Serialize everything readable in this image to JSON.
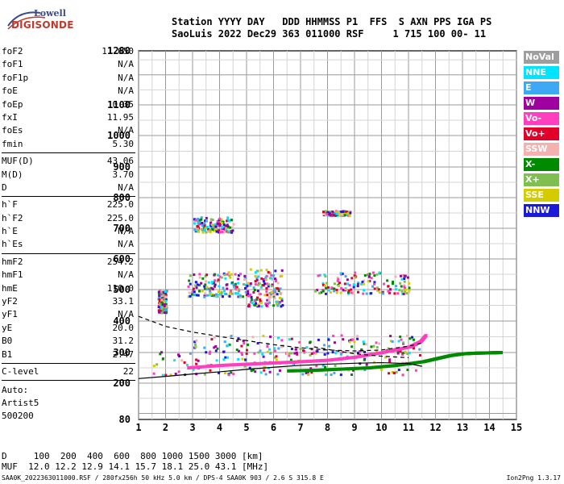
{
  "logo": {
    "lowell": "Lowell",
    "digisonde": "DIGISONDE"
  },
  "header": {
    "line1": "Station YYYY DAY   DDD HHMMSS P1  FFS  S AXN PPS IGA PS",
    "line2": "SaoLuis 2022 Dec29 363 011000 RSF     1 715 100 00- 11"
  },
  "params": [
    {
      "name": "foF2",
      "value": "11.650"
    },
    {
      "name": "foF1",
      "value": "N/A"
    },
    {
      "name": "foF1p",
      "value": "N/A"
    },
    {
      "name": "foE",
      "value": "N/A"
    },
    {
      "name": "foEp",
      "value": "0.35"
    },
    {
      "name": "fxI",
      "value": "11.95"
    },
    {
      "name": "foEs",
      "value": "N/A"
    },
    {
      "name": "fmin",
      "value": "5.30"
    },
    {
      "sep": true
    },
    {
      "name": "MUF(D)",
      "value": "43.06"
    },
    {
      "name": "M(D)",
      "value": "3.70"
    },
    {
      "name": "D",
      "value": "N/A"
    },
    {
      "sep": true
    },
    {
      "name": "h`F",
      "value": "225.0"
    },
    {
      "name": "h`F2",
      "value": "225.0"
    },
    {
      "name": "h`E",
      "value": "N/A"
    },
    {
      "name": "h`Es",
      "value": "N/A"
    },
    {
      "sep": true
    },
    {
      "name": "hmF2",
      "value": "254.2"
    },
    {
      "name": "hmF1",
      "value": "N/A"
    },
    {
      "name": "hmE",
      "value": "110.0"
    },
    {
      "name": "yF2",
      "value": "33.1"
    },
    {
      "name": "yF1",
      "value": "N/A"
    },
    {
      "name": "yE",
      "value": "20.0"
    },
    {
      "name": "B0",
      "value": "31.2"
    },
    {
      "name": "B1",
      "value": "2.47"
    },
    {
      "sep": true
    },
    {
      "name": "C-level",
      "value": "22"
    },
    {
      "sep": true
    }
  ],
  "auto": {
    "line1": "Auto:",
    "line2": "Artist5",
    "line3": "500200"
  },
  "legend": [
    {
      "label": "NoVal",
      "color": "#9e9e9e"
    },
    {
      "label": "NNE",
      "color": "#00e5ff"
    },
    {
      "label": "E",
      "color": "#3fa8f4"
    },
    {
      "label": "W",
      "color": "#a000a0"
    },
    {
      "label": "Vo-",
      "color": "#ff3fbf"
    },
    {
      "label": "Vo+",
      "color": "#e0002a"
    },
    {
      "label": "SSW",
      "color": "#f5b0b0"
    },
    {
      "label": "X-",
      "color": "#008a00"
    },
    {
      "label": "X+",
      "color": "#7fbf4f"
    },
    {
      "label": "SSE",
      "color": "#d4cc00"
    },
    {
      "label": "NNW",
      "color": "#1a1ad8"
    }
  ],
  "bottom": {
    "d_line": "D     100  200  400  600  800 1000 1500 3000 [km]",
    "muf_line": "MUF  12.0 12.2 12.9 14.1 15.7 18.1 25.0 43.1 [MHz]"
  },
  "footer": {
    "file": "SAA0K_2022363011000.RSF / 280fx256h 50 kHz 5.0 km / DPS-4 SAA0K 903 / 2.6 S 315.8 E",
    "version": "Ion2Png 1.3.17"
  },
  "chart_data": {
    "type": "scatter",
    "x_ticks": [
      "1",
      "2",
      "3",
      "4",
      "5",
      "6",
      "7",
      "8",
      "9",
      "10",
      "11",
      "12",
      "13",
      "14",
      "15"
    ],
    "xlim": [
      1,
      15
    ],
    "y_ticks": [
      "80",
      "200",
      "300",
      "400",
      "500",
      "600",
      "700",
      "800",
      "900",
      "1000",
      "1100",
      "1280"
    ],
    "y_scale": "virtual-height ionogram scale (nonlinear, compressed above 800 km)",
    "grid": true,
    "traces": [
      {
        "name": "O-trace (F2)",
        "color": "#ff3fbf",
        "x": [
          2.8,
          4,
          5,
          6,
          7,
          8,
          9,
          10,
          11,
          11.4,
          11.6
        ],
        "y": [
          250,
          258,
          262,
          266,
          270,
          275,
          285,
          300,
          318,
          335,
          355
        ]
      },
      {
        "name": "X-trace (F2)",
        "color": "#008a00",
        "x": [
          6.5,
          7.5,
          8.5,
          9.5,
          10.5,
          11.5,
          12,
          12.5,
          13,
          13.5,
          14,
          14.4
        ],
        "y": [
          240,
          242,
          246,
          250,
          258,
          270,
          280,
          290,
          296,
          298,
          299,
          300
        ]
      }
    ],
    "clusters": [
      {
        "x": [
          1.5,
          11.5
        ],
        "y": [
          230,
          310
        ]
      },
      {
        "x": [
          3,
          11.5
        ],
        "y": [
          300,
          360
        ]
      },
      {
        "x": [
          1.7,
          2
        ],
        "y": [
          430,
          500
        ]
      },
      {
        "x": [
          2.8,
          5
        ],
        "y": [
          480,
          560
        ]
      },
      {
        "x": [
          5,
          6.3
        ],
        "y": [
          450,
          570
        ]
      },
      {
        "x": [
          7.5,
          11
        ],
        "y": [
          490,
          560
        ]
      },
      {
        "x": [
          3,
          4.5
        ],
        "y": [
          690,
          740
        ]
      },
      {
        "x": [
          7.8,
          8.8
        ],
        "y": [
          745,
          760
        ]
      }
    ],
    "model_curves": [
      {
        "name": "dashed",
        "x": [
          1,
          2,
          3,
          4,
          5,
          6,
          7,
          8,
          9,
          10,
          11,
          11.5
        ],
        "y": [
          415,
          383,
          365,
          351,
          338,
          325,
          315,
          308,
          305,
          308,
          320,
          330
        ]
      },
      {
        "name": "dashed-lower",
        "x": [
          7.5,
          8,
          9,
          10,
          11
        ],
        "y": [
          318,
          310,
          296,
          288,
          283
        ]
      },
      {
        "name": "solid",
        "x": [
          1,
          2,
          3,
          4,
          5,
          6,
          7,
          8,
          9,
          10,
          11,
          11.5
        ],
        "y": [
          215,
          222,
          230,
          237,
          245,
          252,
          258,
          262,
          265,
          267,
          264,
          255
        ]
      }
    ]
  }
}
